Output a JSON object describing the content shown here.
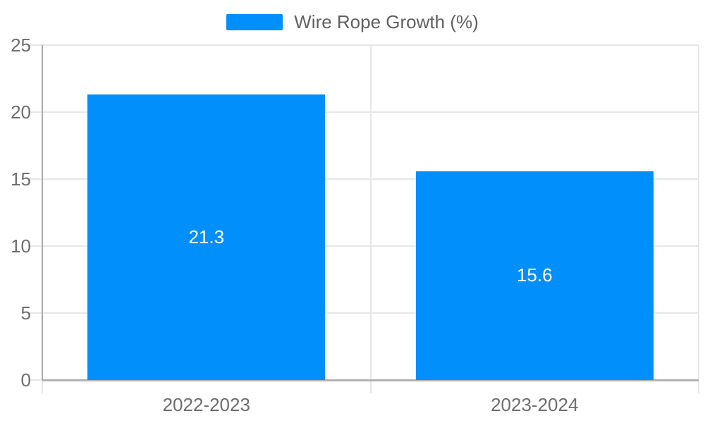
{
  "legend": {
    "label": "Wire Rope Growth (%)"
  },
  "colors": {
    "bar": "#008FFB",
    "grid": "#e6e6e6",
    "x_axis": "#b1b1b1",
    "y_axis": "#a9a9a9",
    "axis_label_text": "#6e6e6e",
    "legend_text": "#616161",
    "data_label_text": "#ffffff",
    "background": "#ffffff"
  },
  "chart_data": {
    "type": "bar",
    "title": "Wire Rope Growth (%)",
    "categories": [
      "2022-2023",
      "2023-2024"
    ],
    "values": [
      21.3,
      15.6
    ],
    "data_labels": [
      "21.3",
      "15.6"
    ],
    "yticks": [
      "0",
      "5",
      "10",
      "15",
      "20",
      "25"
    ],
    "ylim": [
      0,
      25
    ],
    "xlabel": "",
    "ylabel": "",
    "grid": true,
    "legend_position": "top"
  }
}
